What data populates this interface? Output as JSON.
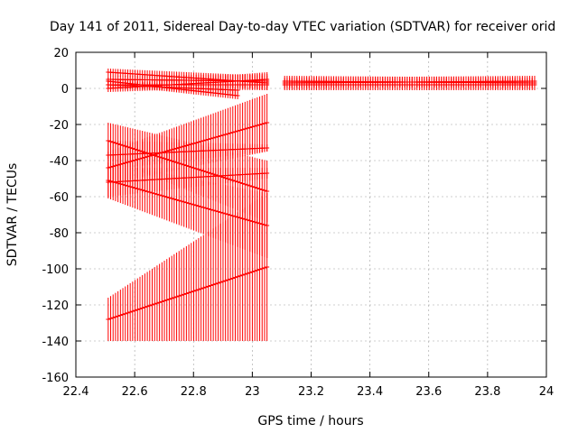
{
  "chart_data": {
    "type": "scatter",
    "title": "Day 141 of 2011, Sidereal Day-to-day VTEC variation (SDTVAR) for receiver orid",
    "xlabel": "GPS time / hours",
    "ylabel": "SDTVAR / TECUs",
    "xlim": [
      22.4,
      24
    ],
    "ylim": [
      -160,
      20
    ],
    "xticks": [
      "22.4",
      "22.6",
      "22.8",
      "23",
      "23.2",
      "23.4",
      "23.6",
      "23.8",
      "24"
    ],
    "yticks": [
      "-160",
      "-140",
      "-120",
      "-100",
      "-80",
      "-60",
      "-40",
      "-20",
      "0",
      "20"
    ],
    "grid": true,
    "legend": "none",
    "series_color": "#ff0000",
    "errorbar_segments": [
      {
        "x": [
          22.51,
          23.05
        ],
        "y0": -128,
        "y1": -99,
        "err0": 12,
        "err1": 41
      },
      {
        "x": [
          22.51,
          23.05
        ],
        "y0": -51,
        "y1": -76,
        "err0": 10,
        "err1": 18
      },
      {
        "x": [
          22.51,
          23.05
        ],
        "y0": -29,
        "y1": -57,
        "err0": 10,
        "err1": 17
      },
      {
        "x": [
          22.51,
          23.05
        ],
        "y0": -44,
        "y1": -19,
        "err0": 9,
        "err1": 16
      },
      {
        "x": [
          22.51,
          23.05
        ],
        "y0": -52,
        "y1": -47,
        "err0": 8,
        "err1": 3
      },
      {
        "x": [
          22.51,
          23.05
        ],
        "y0": -37,
        "y1": -33,
        "err0": 8,
        "err1": 2
      },
      {
        "x": [
          22.51,
          23.05
        ],
        "y0": 9,
        "y1": 3,
        "err0": 2,
        "err1": 4
      },
      {
        "x": [
          22.51,
          23.05
        ],
        "y0": 5,
        "y1": 4,
        "err0": 2,
        "err1": 4
      },
      {
        "x": [
          22.51,
          22.95
        ],
        "y0": 4,
        "y1": -4,
        "err0": 2,
        "err1": 2
      },
      {
        "x": [
          22.51,
          22.95
        ],
        "y0": 2,
        "y1": -1,
        "err0": 2,
        "err1": 2
      },
      {
        "x": [
          22.51,
          23.05
        ],
        "y0": 0,
        "y1": 5,
        "err0": 2,
        "err1": 4
      },
      {
        "x": [
          22.51,
          23.05
        ],
        "y0": 2,
        "y1": 2,
        "err0": 2,
        "err1": 3
      },
      {
        "x": [
          23.11,
          23.96
        ],
        "y0": 4,
        "y1": 3,
        "err0": 3,
        "err1": 3
      },
      {
        "x": [
          23.11,
          23.96
        ],
        "y0": 2,
        "y1": 2,
        "err0": 3,
        "err1": 3
      },
      {
        "x": [
          23.11,
          23.96
        ],
        "y0": 3,
        "y1": 4,
        "err0": 3,
        "err1": 3
      }
    ]
  }
}
